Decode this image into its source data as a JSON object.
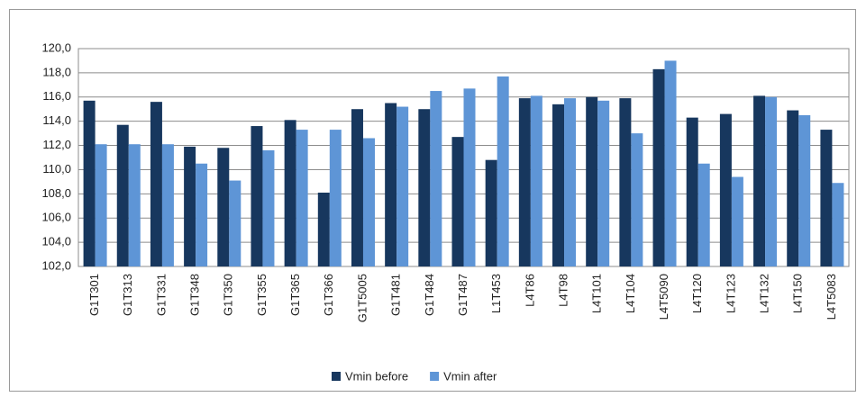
{
  "chart_data": {
    "type": "bar",
    "categories": [
      "G1T301",
      "G1T313",
      "G1T331",
      "G1T348",
      "G1T350",
      "G1T355",
      "G1T365",
      "G1T366",
      "G1T5005",
      "G1T481",
      "G1T484",
      "G1T487",
      "L1T453",
      "L4T86",
      "L4T98",
      "L4T101",
      "L4T104",
      "L4T5090",
      "L4T120",
      "L4T123",
      "L4T132",
      "L4T150",
      "L4T5083"
    ],
    "series": [
      {
        "name": "Vmin before",
        "color": "#17375e",
        "values": [
          115.7,
          113.7,
          115.6,
          111.9,
          111.8,
          113.6,
          114.1,
          108.1,
          115.0,
          115.5,
          115.0,
          112.7,
          110.8,
          115.9,
          115.4,
          116.0,
          115.9,
          118.3,
          114.3,
          114.6,
          116.1,
          114.9,
          113.3
        ]
      },
      {
        "name": "Vmin after",
        "color": "#5e95d6",
        "values": [
          112.1,
          112.1,
          112.1,
          110.5,
          109.1,
          111.6,
          113.3,
          113.3,
          112.6,
          115.2,
          116.5,
          116.7,
          117.7,
          116.1,
          115.9,
          115.7,
          113.0,
          119.0,
          110.5,
          109.4,
          116.0,
          114.5,
          108.9
        ]
      }
    ],
    "ylim": [
      102,
      120
    ],
    "yticks": [
      {
        "value": 102,
        "label": "102,0"
      },
      {
        "value": 104,
        "label": "104,0"
      },
      {
        "value": 106,
        "label": "106,0"
      },
      {
        "value": 108,
        "label": "108,0"
      },
      {
        "value": 110,
        "label": "110,0"
      },
      {
        "value": 112,
        "label": "112,0"
      },
      {
        "value": 114,
        "label": "114,0"
      },
      {
        "value": 116,
        "label": "116,0"
      },
      {
        "value": 118,
        "label": "118,0"
      },
      {
        "value": 120,
        "label": "120,0"
      }
    ],
    "grid": true,
    "legend": "bottom"
  }
}
